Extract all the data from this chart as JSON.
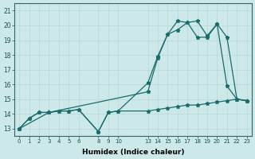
{
  "xlabel": "Humidex (Indice chaleur)",
  "bg_color": "#cce8e8",
  "grid_color": "#b8d8d8",
  "line_color": "#1a6b6b",
  "series": [
    {
      "x": [
        0,
        1,
        2,
        3,
        4,
        5,
        6,
        8,
        9,
        10,
        13,
        14,
        15,
        16,
        17,
        18,
        19,
        20,
        21,
        22,
        23
      ],
      "y": [
        13,
        13.7,
        14.1,
        14.1,
        14.2,
        14.2,
        14.3,
        12.8,
        14.1,
        14.2,
        14.2,
        14.3,
        14.4,
        14.5,
        14.6,
        14.6,
        14.7,
        14.8,
        14.9,
        15.0,
        14.9
      ]
    },
    {
      "x": [
        0,
        1,
        2,
        3,
        4,
        5,
        6,
        8,
        9,
        10,
        13,
        14,
        15,
        16,
        17,
        18,
        19,
        20,
        21,
        22,
        23
      ],
      "y": [
        13,
        13.7,
        14.1,
        14.1,
        14.2,
        14.2,
        14.3,
        12.8,
        14.1,
        14.2,
        16.1,
        17.9,
        19.4,
        19.7,
        20.2,
        20.3,
        19.3,
        20.1,
        15.9,
        15.0,
        14.9
      ]
    },
    {
      "x": [
        0,
        3,
        13,
        14,
        15,
        16,
        17,
        18,
        19,
        20,
        21,
        22,
        23
      ],
      "y": [
        13,
        14.1,
        15.5,
        17.8,
        19.4,
        20.3,
        20.2,
        19.2,
        19.2,
        20.1,
        19.2,
        15.0,
        14.9
      ]
    }
  ],
  "xlim": [
    -0.5,
    23.5
  ],
  "ylim": [
    12.5,
    21.5
  ],
  "yticks": [
    13,
    14,
    15,
    16,
    17,
    18,
    19,
    20,
    21
  ],
  "xtick_positions": [
    0,
    1,
    2,
    3,
    4,
    5,
    6,
    8,
    9,
    10,
    13,
    14,
    15,
    16,
    17,
    18,
    19,
    20,
    21,
    22,
    23
  ],
  "xtick_labels": [
    "0",
    "1",
    "2",
    "3",
    "4",
    "5",
    "6",
    "8",
    "9",
    "10",
    "13",
    "14",
    "15",
    "16",
    "17",
    "18",
    "19",
    "20",
    "21",
    "22",
    "23"
  ]
}
